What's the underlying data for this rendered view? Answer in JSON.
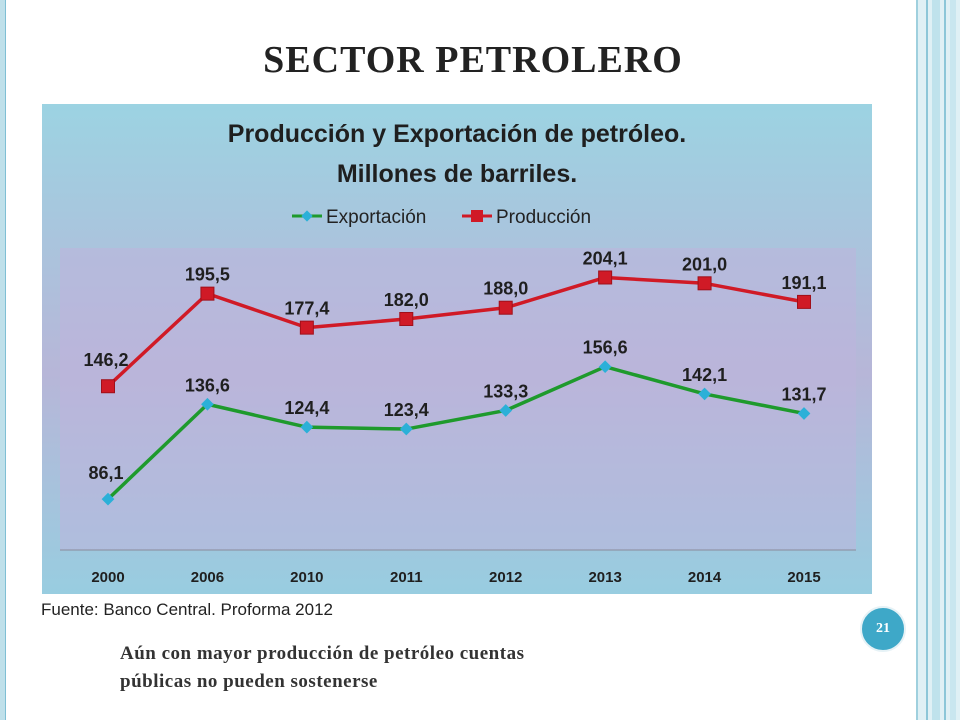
{
  "slide": {
    "title": "SECTOR PETROLERO",
    "source": "Fuente: Banco Central. Proforma 2012",
    "page_number": "21",
    "conclusion_line1": "Aún con mayor producción de petróleo cuentas",
    "conclusion_line2": "públicas no pueden sostenerse"
  },
  "colors": {
    "frame_accent": "#3ea8c8",
    "export_series": "#1e9a2c",
    "export_marker": "#2bb0d8",
    "production_series": "#d01a26"
  },
  "chart_data": {
    "type": "line",
    "title_line1": "Producción y Exportación de petróleo.",
    "title_line2": "Millones de barriles.",
    "categories": [
      "2000",
      "2006",
      "2010",
      "2011",
      "2012",
      "2013",
      "2014",
      "2015"
    ],
    "series": [
      {
        "name": "Exportación",
        "values": [
          86.1,
          136.6,
          124.4,
          123.4,
          133.3,
          156.6,
          142.1,
          131.7
        ],
        "labels": [
          "86,1",
          "136,6",
          "124,4",
          "123,4",
          "133,3",
          "156,6",
          "142,1",
          "131,7"
        ],
        "marker": "diamond"
      },
      {
        "name": "Producción",
        "values": [
          146.2,
          195.5,
          177.4,
          182.0,
          188.0,
          204.1,
          201.0,
          191.1
        ],
        "labels": [
          "146,2",
          "195,5",
          "177,4",
          "182,0",
          "188,0",
          "204,1",
          "201,0",
          "191,1"
        ],
        "marker": "square"
      }
    ],
    "legend_position": "top",
    "grid": false,
    "y_axis_visible": false,
    "xlabel": "",
    "ylabel": ""
  }
}
